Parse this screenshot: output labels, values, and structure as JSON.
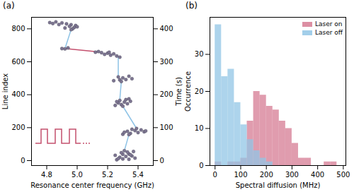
{
  "chart_data": [
    {
      "type": "scatter",
      "title": "(a)",
      "xlabel": "Resonance center frequency (GHz)",
      "ylabel": "Line index",
      "y2label": "Time (s)",
      "xlim": [
        4.7,
        5.5
      ],
      "xticks": [
        4.8,
        {
          "value": 5,
          "label": "5.0"
        },
        5.2,
        5.4
      ],
      "ylim": [
        -30,
        870
      ],
      "yticks": [
        0,
        200,
        400,
        600,
        800
      ],
      "y2lim": [
        -15,
        435
      ],
      "y2ticks": [
        0,
        100,
        200,
        300,
        400
      ],
      "series": [
        {
          "type": "line",
          "color": "#8ec3e6",
          "x": [
            4.96,
            4.92,
            null,
            5.27,
            5.27,
            null,
            5.29,
            5.28,
            null,
            5.3,
            5.39,
            null,
            5.34,
            5.31
          ],
          "y": [
            795,
            680,
            null,
            628,
            508,
            null,
            480,
            370,
            null,
            330,
            195,
            null,
            158,
            60
          ]
        },
        {
          "type": "line",
          "color": "#c4506e",
          "x": [
            4.92,
            5.14
          ],
          "y": [
            680,
            660
          ]
        },
        {
          "type": "scatter",
          "marker": "circle",
          "color": "#7d7591",
          "x": [
            5.26,
            5.3,
            5.34,
            5.38,
            5.28,
            5.32,
            5.36,
            5.25,
            5.3,
            5.34,
            5.29,
            5.33,
            5.37,
            5.31,
            5.35,
            5.27,
            5.3,
            5.35,
            5.4,
            5.44,
            5.33,
            5.38,
            5.42,
            5.36,
            5.31,
            5.39,
            5.45,
            5.34,
            5.25,
            5.29,
            5.33,
            5.27,
            5.31,
            5.35,
            5.28,
            5.32,
            5.26,
            5.3,
            5.34,
            5.24,
            5.28,
            5.32,
            5.36,
            5.3,
            5.27,
            5.34,
            5.29,
            5.12,
            5.16,
            5.2,
            5.24,
            5.18,
            5.22,
            5.26,
            5.28,
            5.14,
            5.21,
            4.9,
            4.94,
            4.92,
            4.82,
            4.86,
            4.9,
            4.84,
            4.88,
            4.93,
            4.96,
            4.99,
            4.95,
            4.98,
            5.0,
            4.92,
            4.97,
            4.96
          ],
          "y": [
            5,
            10,
            8,
            15,
            20,
            25,
            28,
            32,
            38,
            40,
            48,
            52,
            55,
            60,
            35,
            12,
            160,
            165,
            170,
            175,
            178,
            182,
            186,
            190,
            172,
            195,
            180,
            158,
            335,
            340,
            345,
            350,
            355,
            360,
            365,
            370,
            358,
            330,
            375,
            485,
            490,
            492,
            497,
            502,
            508,
            512,
            480,
            658,
            655,
            652,
            648,
            645,
            640,
            635,
            628,
            662,
            658,
            680,
            684,
            678,
            838,
            842,
            836,
            832,
            826,
            830,
            825,
            820,
            815,
            808,
            812,
            805,
            800,
            795
          ]
        }
      ]
    },
    {
      "type": "histogram",
      "title": "(b)",
      "xlabel": "Spectral diffusion (MHz)",
      "ylabel": "Occurrence",
      "xlim": [
        -20,
        510
      ],
      "xticks": [
        0,
        100,
        200,
        300,
        400,
        500
      ],
      "ylim": [
        0,
        40
      ],
      "yticks": [
        0,
        10,
        20,
        30
      ],
      "legend": "upper right",
      "bins": [
        0,
        25,
        50,
        75,
        100,
        125,
        150,
        175,
        200,
        225,
        250,
        275,
        300,
        325,
        350,
        375,
        400,
        425,
        450,
        475
      ],
      "series": [
        {
          "name": "Laser on",
          "color": "#d67b93",
          "values": [
            1,
            0,
            1,
            1,
            2,
            12,
            20,
            19,
            16,
            15,
            12,
            10,
            6,
            2,
            2,
            0,
            0,
            1,
            1
          ]
        },
        {
          "name": "Laser off",
          "color": "#92c5e6",
          "values": [
            38,
            24,
            26,
            17,
            11,
            7,
            4,
            2,
            1,
            0,
            0,
            0,
            0,
            0,
            0,
            0,
            0,
            0,
            0
          ]
        }
      ]
    }
  ]
}
